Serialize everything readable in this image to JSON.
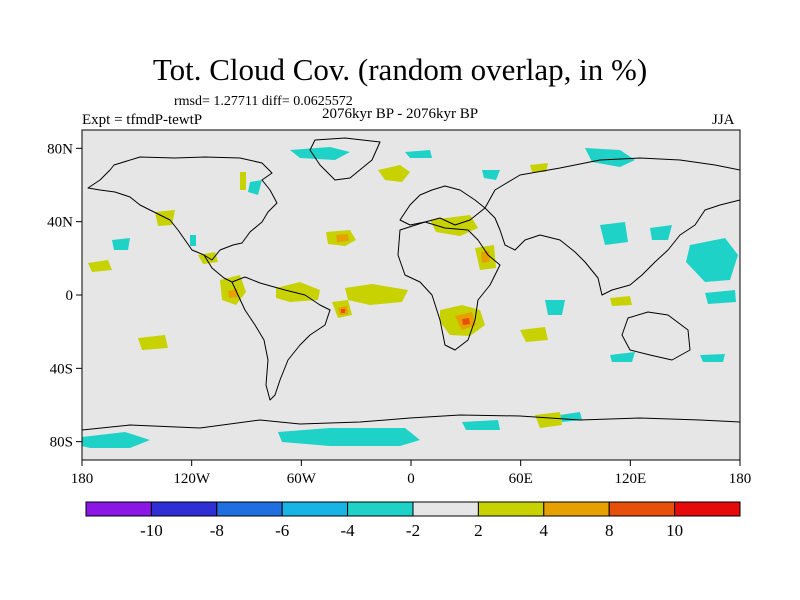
{
  "title": "Tot. Cloud Cov. (random overlap, in %)",
  "stats": "rmsd= 1.27711 diff= 0.0625572",
  "period": "2076kyr BP - 2076kyr BP",
  "experiment": "Expt = tfmdP-tewtP",
  "season": "JJA",
  "lat_ticks": [
    {
      "label": "80N",
      "lat": 80
    },
    {
      "label": "40N",
      "lat": 40
    },
    {
      "label": "0",
      "lat": 0
    },
    {
      "label": "40S",
      "lat": -40
    },
    {
      "label": "80S",
      "lat": -80
    }
  ],
  "lon_ticks": [
    {
      "label": "180",
      "lon": -180
    },
    {
      "label": "120W",
      "lon": -120
    },
    {
      "label": "60W",
      "lon": -60
    },
    {
      "label": "0",
      "lon": 0
    },
    {
      "label": "60E",
      "lon": 60
    },
    {
      "label": "120E",
      "lon": 120
    },
    {
      "label": "180",
      "lon": 180
    }
  ],
  "colorbar": {
    "colors": [
      "#8a17e6",
      "#2f2fd6",
      "#1f6fe0",
      "#19b4e6",
      "#1ed2c8",
      "#e6e6e6",
      "#c8d200",
      "#e6a000",
      "#e6500a",
      "#e60a0a"
    ],
    "labels": [
      "-10",
      "-8",
      "-6",
      "-4",
      "-2",
      "2",
      "4",
      "8",
      "10"
    ]
  },
  "colors": {
    "background": "#e6e6e6",
    "coast": "#000000"
  }
}
